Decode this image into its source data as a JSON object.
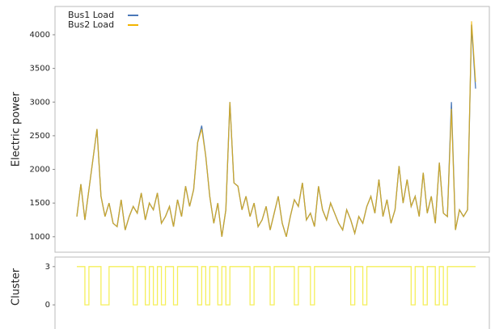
{
  "chart_data": [
    {
      "type": "line",
      "ylabel": "Electric power",
      "legend": "upper left",
      "ylim": [
        770,
        4420
      ],
      "yticks": [
        1000,
        1500,
        2000,
        2500,
        3000,
        3500,
        4000
      ],
      "series": [
        {
          "name": "Bus1 Load",
          "color": "#4a78b8",
          "values": [
            1300,
            1780,
            1250,
            1700,
            2150,
            2600,
            1600,
            1300,
            1500,
            1200,
            1150,
            1550,
            1100,
            1300,
            1450,
            1350,
            1650,
            1250,
            1500,
            1400,
            1650,
            1200,
            1300,
            1450,
            1150,
            1550,
            1300,
            1750,
            1450,
            1700,
            2400,
            2650,
            2200,
            1600,
            1200,
            1500,
            1000,
            1400,
            3000,
            1800,
            1750,
            1400,
            1600,
            1300,
            1500,
            1150,
            1250,
            1450,
            1100,
            1350,
            1600,
            1200,
            1000,
            1300,
            1550,
            1450,
            1800,
            1250,
            1350,
            1150,
            1750,
            1400,
            1250,
            1500,
            1350,
            1200,
            1100,
            1400,
            1250,
            1050,
            1300,
            1200,
            1450,
            1600,
            1350,
            1850,
            1300,
            1550,
            1200,
            1400,
            2050,
            1500,
            1850,
            1450,
            1600,
            1300,
            1950,
            1350,
            1600,
            1200,
            2100,
            1350,
            1300,
            3000,
            1100,
            1400,
            1300,
            1400,
            4150,
            3200
          ]
        },
        {
          "name": "Bus2 Load",
          "color": "#f2b400",
          "values": [
            1300,
            1780,
            1250,
            1700,
            2150,
            2600,
            1600,
            1300,
            1500,
            1200,
            1150,
            1550,
            1100,
            1300,
            1450,
            1350,
            1650,
            1250,
            1500,
            1400,
            1650,
            1200,
            1300,
            1450,
            1150,
            1550,
            1300,
            1750,
            1450,
            1700,
            2400,
            2600,
            2200,
            1600,
            1200,
            1500,
            1000,
            1400,
            3000,
            1800,
            1750,
            1400,
            1600,
            1300,
            1500,
            1150,
            1250,
            1450,
            1100,
            1350,
            1600,
            1200,
            1000,
            1300,
            1550,
            1450,
            1800,
            1250,
            1350,
            1150,
            1750,
            1400,
            1250,
            1500,
            1350,
            1200,
            1100,
            1400,
            1250,
            1050,
            1300,
            1200,
            1450,
            1600,
            1350,
            1850,
            1300,
            1550,
            1200,
            1400,
            2050,
            1500,
            1850,
            1450,
            1600,
            1300,
            1950,
            1350,
            1600,
            1200,
            2100,
            1350,
            1300,
            2900,
            1100,
            1400,
            1300,
            1400,
            4200,
            3300
          ]
        }
      ]
    },
    {
      "type": "step",
      "ylabel": "Cluster",
      "ylim": [
        -0.5,
        3.75
      ],
      "yticks": [
        0,
        3
      ],
      "series": [
        {
          "color": "#f5ef5a",
          "values": [
            3,
            3,
            0,
            3,
            3,
            3,
            0,
            0,
            3,
            3,
            3,
            3,
            3,
            3,
            0,
            3,
            3,
            0,
            3,
            0,
            3,
            0,
            3,
            3,
            0,
            3,
            3,
            3,
            3,
            3,
            0,
            3,
            0,
            3,
            3,
            0,
            3,
            0,
            3,
            3,
            3,
            3,
            3,
            0,
            3,
            3,
            3,
            3,
            0,
            3,
            3,
            3,
            3,
            3,
            0,
            3,
            3,
            3,
            0,
            3,
            3,
            3,
            3,
            3,
            3,
            3,
            3,
            3,
            0,
            3,
            3,
            0,
            3,
            3,
            3,
            3,
            3,
            3,
            3,
            3,
            3,
            3,
            3,
            0,
            3,
            3,
            0,
            3,
            3,
            0,
            3,
            0,
            3,
            3,
            3,
            3,
            3,
            3,
            3,
            3
          ]
        }
      ]
    }
  ]
}
